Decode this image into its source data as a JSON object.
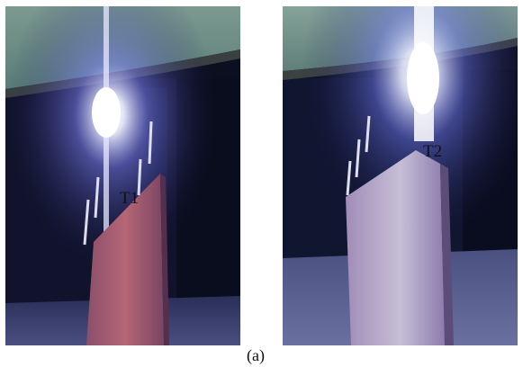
{
  "figure": {
    "caption": "(a)",
    "panels": [
      {
        "label": "T1"
      },
      {
        "label": "T2"
      }
    ]
  },
  "colors": {
    "ceiling": "#6f8f86",
    "background_wall": "#0d1022",
    "arc_glow": "#f4f6ff",
    "left_plate": "#b06070",
    "right_plate": "#b8b0cc",
    "floor": "#5a5f87"
  }
}
